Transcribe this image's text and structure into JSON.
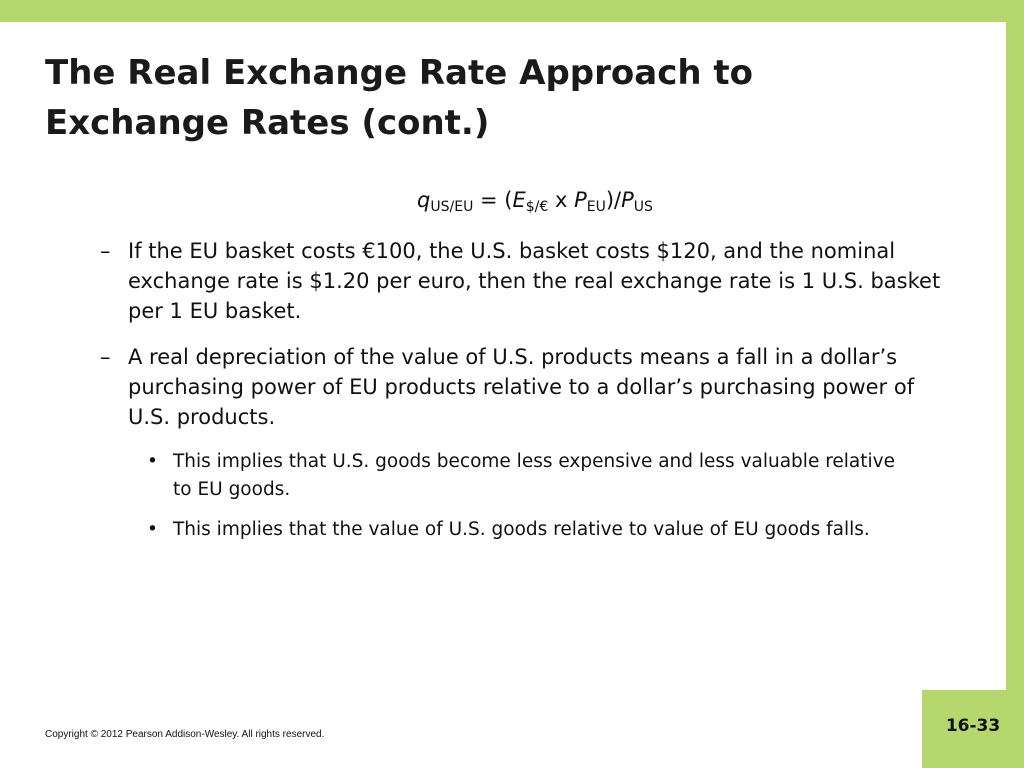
{
  "header": {
    "title": "The Real Exchange Rate Approach to Exchange Rates (cont.)"
  },
  "formula": [
    "q",
    "US/EU",
    " = (",
    "E",
    "$/€",
    " x ",
    "P",
    "EU",
    ")/",
    "P",
    "US"
  ],
  "items": [
    {
      "text": "If the EU basket costs €100, the U.S. basket costs $120, and the nominal exchange rate is $1.20 per euro, then the real exchange rate is 1 U.S. basket per 1 EU basket."
    },
    {
      "text": "A real depreciation of the value of U.S. products means a fall in a dollar’s purchasing power of EU products relative to a dollar’s purchasing power of U.S. products."
    },
    {
      "text": "This implies that U.S. goods become less expensive and less valuable relative to EU goods."
    },
    {
      "text": "This implies that the value of U.S. goods relative to value of EU goods falls."
    }
  ],
  "footer": {
    "copyright": "Copyright © 2012 Pearson Addison-Wesley. All rights reserved.",
    "page": "16-33"
  }
}
